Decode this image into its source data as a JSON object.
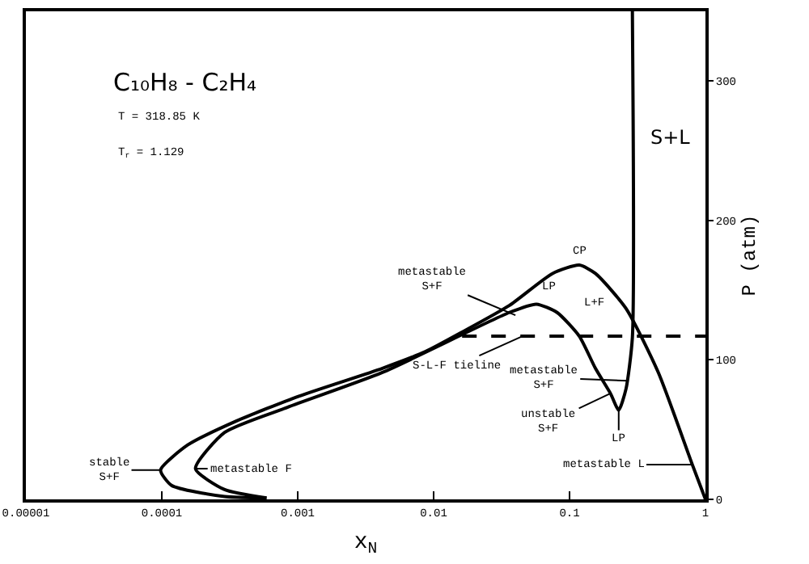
{
  "chart_data": {
    "type": "line",
    "title": "C₁₀H₈ - C₂H₄",
    "xlabel": "x$_{N}$",
    "ylabel": "P (atm)",
    "log": "x",
    "xlim": [
      1e-05,
      1
    ],
    "xticks": [
      {
        "value": 1e-05,
        "label": "0.00001"
      },
      {
        "value": 0.0001,
        "label": "0.0001"
      },
      {
        "value": 0.001,
        "label": "0.001"
      },
      {
        "value": 0.01,
        "label": "0.01"
      },
      {
        "value": 0.1,
        "label": "0.1"
      },
      {
        "value": 1,
        "label": "1"
      }
    ],
    "ylim": [
      0,
      350
    ],
    "yticks": [
      0,
      100,
      200,
      300
    ],
    "grid": false,
    "marker": "none",
    "series": [
      {
        "color": "#000000",
        "line_style": "solid",
        "x": [
          0.00059,
          0.00029,
          0.000118,
          9.8e-05,
          0.000155,
          0.00035,
          0.00102,
          0.0042,
          0.0087,
          0.0162,
          0.036,
          0.075,
          0.118,
          0.155,
          0.26,
          0.45,
          0.8,
          1
        ],
        "values": [
          1,
          2,
          10,
          21,
          39,
          56,
          74,
          94,
          106,
          120,
          139,
          162,
          168,
          162,
          137,
          91,
          25,
          0
        ]
      },
      {
        "color": "#000000",
        "line_style": "solid",
        "x": [
          0.00059,
          0.00029,
          0.000177,
          0.00029,
          0.00084,
          0.0042,
          0.036,
          0.057,
          0.081,
          0.118,
          0.155,
          0.2,
          0.23,
          0.26,
          0.29,
          0.29
        ],
        "values": [
          1,
          7,
          22,
          48,
          66,
          91,
          134,
          140,
          134,
          117,
          94,
          76,
          64,
          79,
          116,
          350
        ]
      },
      {
        "color": "#000000",
        "line_style": "dashed",
        "x": [
          0.0162,
          1
        ],
        "values": [
          117,
          117
        ]
      }
    ],
    "annotations": [
      "T = 318.85 K",
      "T$_{r}$ = 1.129",
      {
        "text": "CP",
        "x": 0.118,
        "y": 168
      },
      {
        "text": "LP",
        "x": 0.057,
        "y": 140
      },
      "L+F",
      "S+L",
      {
        "text": "metastable\nS+F",
        "x": 0.04,
        "y": 132
      },
      {
        "text": "S-L-F tieline",
        "x": 0.045,
        "y": 117
      },
      {
        "text": "unstable\nS+F",
        "x": 0.2,
        "y": 76
      },
      {
        "text": "LP",
        "x": 0.23,
        "y": 64
      },
      "metastable\nS+F",
      "metastable L",
      {
        "text": "stable\nS+F",
        "x": 9.8e-05,
        "y": 21
      },
      {
        "text": "metastable F",
        "x": 0.000177,
        "y": 22
      }
    ]
  }
}
